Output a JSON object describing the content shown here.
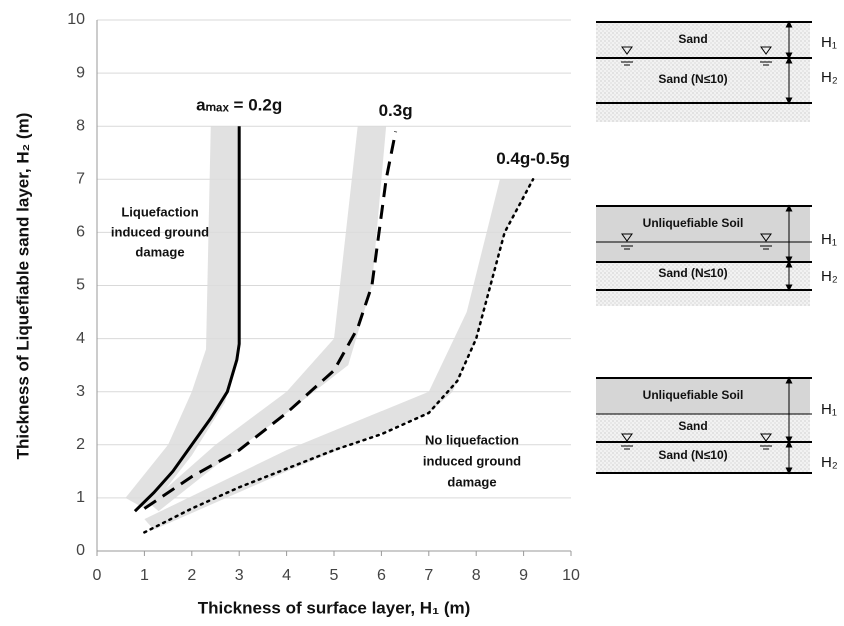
{
  "chart_data": {
    "type": "line",
    "x_label": "Thickness of surface layer, H₁ (m)",
    "y_label": "Thickness of Liquefiable sand layer, H₂ (m)",
    "xlim": [
      0,
      10
    ],
    "xticks": [
      0,
      1,
      2,
      3,
      4,
      5,
      6,
      7,
      8,
      9,
      10
    ],
    "ylim": [
      0,
      10
    ],
    "yticks": [
      0,
      1,
      2,
      3,
      4,
      5,
      6,
      7,
      8,
      9,
      10
    ],
    "grid": true,
    "band_color": "#dcdcdc",
    "series": [
      {
        "name": "aₘₐₓ = 0.2g",
        "color": "#000000",
        "style": "solid",
        "x": [
          0.8,
          1.2,
          1.6,
          2.0,
          2.4,
          2.75,
          2.95,
          3.0,
          3.0,
          3.0
        ],
        "y": [
          0.75,
          1.1,
          1.5,
          2.0,
          2.5,
          3.0,
          3.6,
          3.9,
          5.0,
          8.0
        ],
        "band_x": [
          0.6,
          1.5,
          2.0,
          2.3,
          2.4,
          3.0,
          3.0,
          2.7,
          2.0,
          1.3,
          1.0
        ],
        "band_y": [
          1.0,
          2.0,
          3.0,
          3.8,
          8.0,
          8.0,
          3.8,
          2.8,
          1.8,
          1.0,
          0.8
        ]
      },
      {
        "name": "0.3g",
        "color": "#000000",
        "style": "dashed",
        "x": [
          1.0,
          2.0,
          3.0,
          4.0,
          5.0,
          5.5,
          5.8,
          5.95,
          6.1,
          6.3
        ],
        "y": [
          0.8,
          1.4,
          1.9,
          2.6,
          3.4,
          4.2,
          5.0,
          6.0,
          7.0,
          7.9
        ],
        "band_x": [
          1.1,
          2.5,
          4.0,
          5.0,
          5.5,
          6.1,
          5.8,
          5.3,
          4.0,
          2.5,
          1.3
        ],
        "band_y": [
          0.9,
          2.0,
          3.0,
          4.0,
          8.0,
          8.0,
          5.0,
          3.5,
          2.6,
          1.6,
          0.75
        ]
      },
      {
        "name": "0.4g-0.5g",
        "color": "#000000",
        "style": "dotted",
        "x": [
          1.0,
          2.0,
          3.0,
          4.0,
          5.0,
          6.0,
          7.0,
          7.6,
          8.0,
          8.3,
          8.6,
          9.2
        ],
        "y": [
          0.35,
          0.8,
          1.2,
          1.55,
          1.9,
          2.2,
          2.6,
          3.2,
          4.0,
          5.0,
          6.0,
          7.0
        ],
        "band_x": [
          1.0,
          4.0,
          7.0,
          7.8,
          8.5,
          9.2,
          8.6,
          8.0,
          7.5,
          7.0,
          4.0,
          1.2
        ],
        "band_y": [
          0.6,
          1.9,
          3.0,
          4.5,
          7.0,
          7.0,
          6.0,
          4.0,
          3.0,
          2.6,
          1.5,
          0.4
        ]
      }
    ],
    "annotations": [
      {
        "lines": [
          "Liquefaction",
          "induced ground",
          "damage"
        ]
      },
      {
        "lines": [
          "No liquefaction",
          "induced ground",
          "damage"
        ]
      }
    ]
  },
  "diagrams": [
    {
      "layers": [
        "Sand",
        "Sand (N≤10)"
      ],
      "h1": "H₁",
      "h2": "H₂"
    },
    {
      "layers": [
        "Unliquefiable Soil",
        "Sand (N≤10)"
      ],
      "h1": "H₁",
      "h2": "H₂"
    },
    {
      "layers": [
        "Unliquefiable Soil",
        "Sand",
        "Sand (N≤10)"
      ],
      "h1": "H₁",
      "h2": "H₂"
    }
  ]
}
